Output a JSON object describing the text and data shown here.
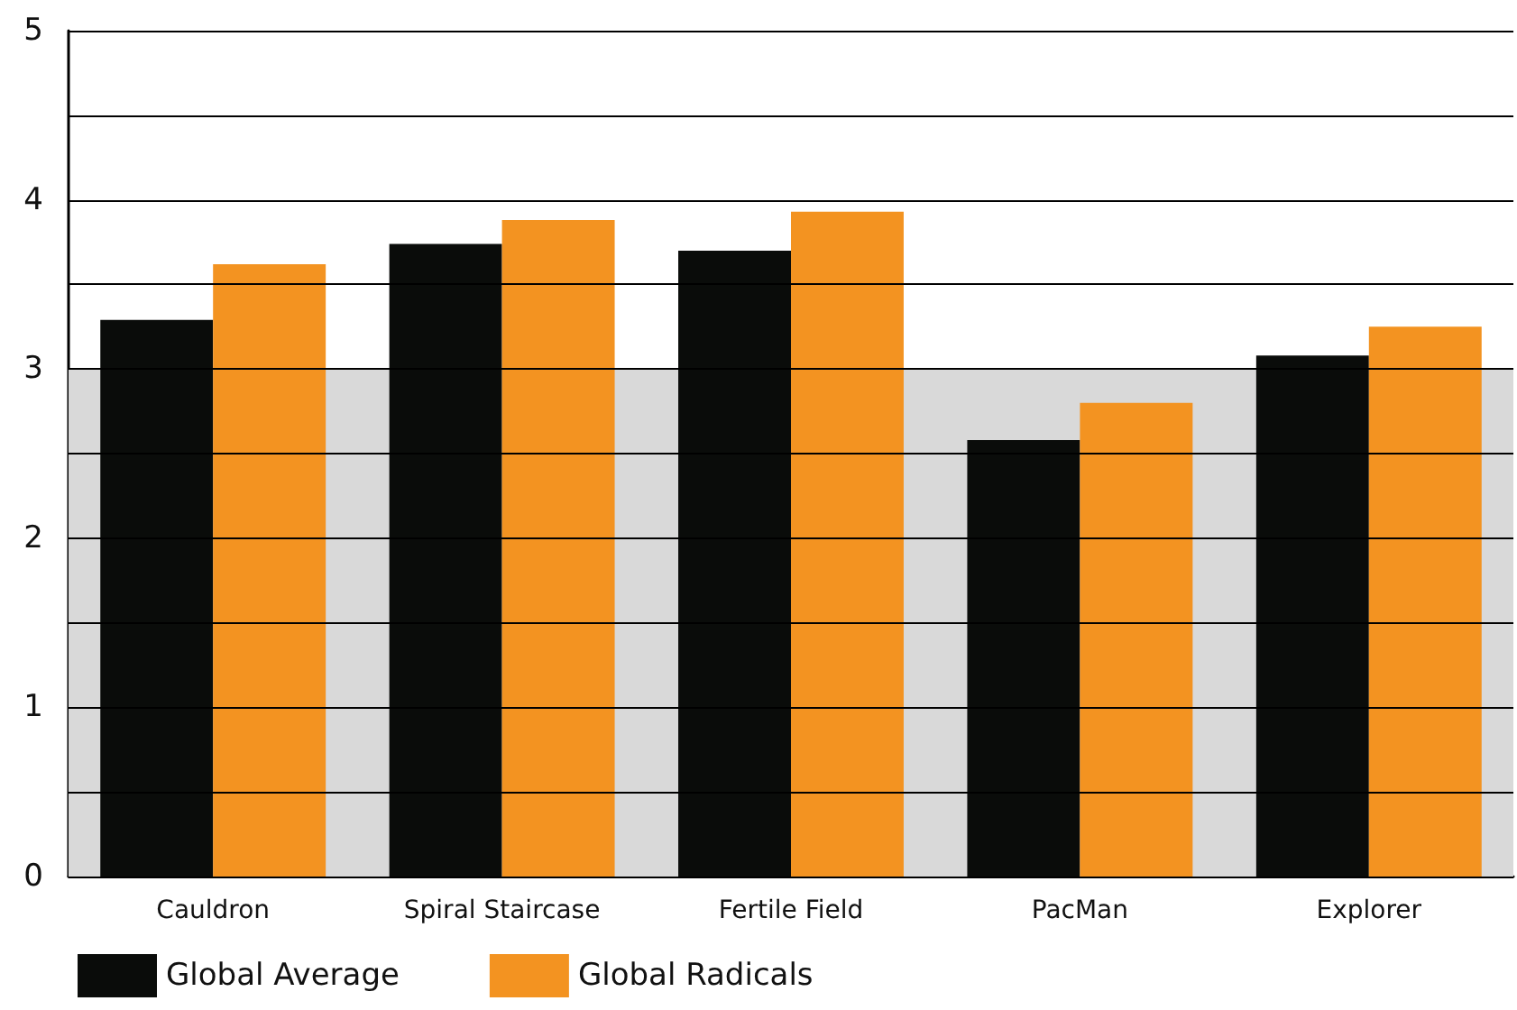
{
  "chart_data": {
    "type": "bar",
    "categories": [
      "Cauldron",
      "Spiral Staircase",
      "Fertile Field",
      "PacMan",
      "Explorer"
    ],
    "series": [
      {
        "name": "Global Average",
        "color": "#0a0c0a",
        "values": [
          3.29,
          3.74,
          3.7,
          2.58,
          3.08
        ]
      },
      {
        "name": "Global Radicals",
        "color": "#f39321",
        "values": [
          3.62,
          3.88,
          3.93,
          2.8,
          3.25
        ]
      }
    ],
    "ylim": [
      0,
      5
    ],
    "yticks": [
      0,
      {
        "value": 0.5,
        "label": null
      },
      1,
      {
        "value": 1.5,
        "label": null
      },
      2,
      {
        "value": 2.5,
        "label": null
      },
      3,
      {
        "value": 3.5,
        "label": null
      },
      4,
      {
        "value": 4.5,
        "label": null
      },
      5
    ],
    "bands": [
      {
        "axis": "y",
        "from": 0,
        "to": 3,
        "color": "#d9d9d9"
      }
    ],
    "grid": "y",
    "legend": "bottom left"
  }
}
